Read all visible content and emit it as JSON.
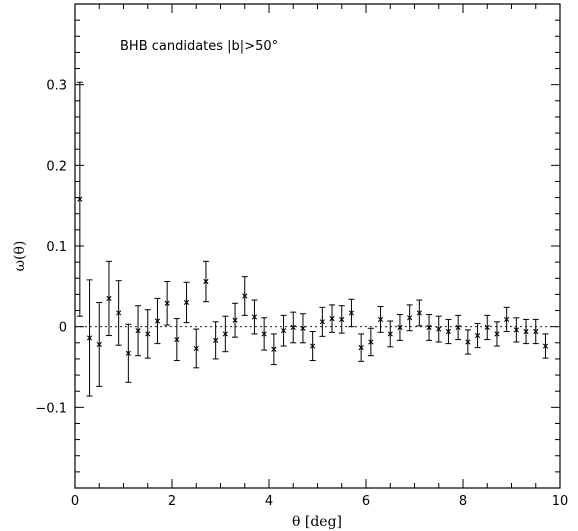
{
  "chart_data": {
    "type": "scatter",
    "title": "",
    "annotation": "BHB candidates |b|>50°",
    "xlabel": "θ [deg]",
    "ylabel": "ω(θ)",
    "xlim": [
      0,
      10
    ],
    "ylim": [
      -0.2,
      0.4
    ],
    "x_ticks": [
      0,
      2,
      4,
      6,
      8,
      10
    ],
    "y_ticks": [
      -0.1,
      0,
      0.1,
      0.2,
      0.3
    ],
    "y_tick_labels": [
      "−0.1",
      "0",
      "0.1",
      "0.2",
      "0.3"
    ],
    "reference_line_y": 0,
    "error_bars": true,
    "series": [
      {
        "x": [
          0.1,
          0.3,
          0.5,
          0.7,
          0.9,
          1.1,
          1.3,
          1.5,
          1.7,
          1.9,
          2.1,
          2.3,
          2.5,
          2.7,
          2.9,
          3.1,
          3.3,
          3.5,
          3.7,
          3.9,
          4.1,
          4.3,
          4.5,
          4.7,
          4.9,
          5.1,
          5.3,
          5.5,
          5.7,
          5.9,
          6.1,
          6.3,
          6.5,
          6.7,
          6.9,
          7.1,
          7.3,
          7.5,
          7.7,
          7.9,
          8.1,
          8.3,
          8.5,
          8.7,
          8.9,
          9.1,
          9.3,
          9.5,
          9.7
        ],
        "y": [
          0.158,
          -0.014,
          -0.022,
          0.035,
          0.017,
          -0.033,
          -0.005,
          -0.009,
          0.007,
          0.029,
          -0.016,
          0.03,
          -0.027,
          0.056,
          -0.017,
          -0.009,
          0.008,
          0.038,
          0.012,
          -0.009,
          -0.028,
          -0.005,
          -0.001,
          -0.002,
          -0.024,
          0.006,
          0.01,
          0.009,
          0.017,
          -0.026,
          -0.019,
          0.009,
          -0.009,
          -0.001,
          0.011,
          0.017,
          -0.001,
          -0.003,
          -0.006,
          -0.001,
          -0.019,
          -0.011,
          -0.001,
          -0.009,
          0.009,
          -0.004,
          -0.006,
          -0.006,
          -0.024
        ],
        "err": [
          0.145,
          0.072,
          0.052,
          0.046,
          0.04,
          0.036,
          0.031,
          0.03,
          0.028,
          0.027,
          0.026,
          0.025,
          0.024,
          0.025,
          0.023,
          0.022,
          0.021,
          0.024,
          0.021,
          0.02,
          0.019,
          0.019,
          0.019,
          0.018,
          0.018,
          0.018,
          0.017,
          0.017,
          0.017,
          0.017,
          0.017,
          0.016,
          0.016,
          0.016,
          0.016,
          0.016,
          0.016,
          0.016,
          0.015,
          0.015,
          0.015,
          0.015,
          0.015,
          0.015,
          0.015,
          0.015,
          0.015,
          0.015,
          0.015
        ]
      }
    ]
  }
}
